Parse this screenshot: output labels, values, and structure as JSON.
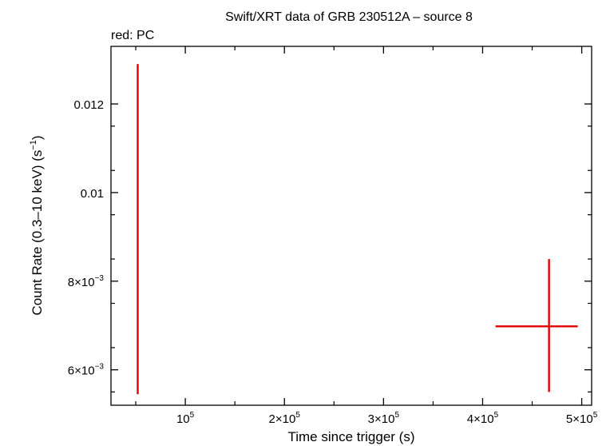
{
  "chart_data": {
    "type": "scatter",
    "title": "Swift/XRT data of GRB 230512A – source 8",
    "subtitle": "red: PC",
    "xlabel": "Time since trigger (s)",
    "ylabel_main": "Count Rate (0.3–10 keV) (s",
    "ylabel_exp": "−1",
    "ylabel_close": ")",
    "xlim": [
      25000,
      510000
    ],
    "ylim": [
      0.0052,
      0.0133
    ],
    "x_ticks": [
      {
        "value": 100000,
        "mant": "10",
        "exp": "5"
      },
      {
        "value": 200000,
        "mant": "2×10",
        "exp": "5"
      },
      {
        "value": 300000,
        "mant": "3×10",
        "exp": "5"
      },
      {
        "value": 400000,
        "mant": "4×10",
        "exp": "5"
      },
      {
        "value": 500000,
        "mant": "5×10",
        "exp": "5"
      }
    ],
    "y_ticks": [
      {
        "value": 0.006,
        "mant": "6×10",
        "exp": "−3"
      },
      {
        "value": 0.008,
        "mant": "8×10",
        "exp": "−3"
      },
      {
        "value": 0.01,
        "mant": "0.01",
        "exp": ""
      },
      {
        "value": 0.012,
        "mant": "0.012",
        "exp": ""
      }
    ],
    "series": [
      {
        "color": "#e00000",
        "points": [
          {
            "x": 52000,
            "xerr": [
              200,
              200
            ],
            "y": 0.00875,
            "yerr": [
              0.0033,
              0.00415
            ]
          },
          {
            "x": 467000,
            "xerr": [
              54000,
              29000
            ],
            "y": 0.00698,
            "yerr": [
              0.00148,
              0.00152
            ]
          }
        ]
      }
    ]
  }
}
